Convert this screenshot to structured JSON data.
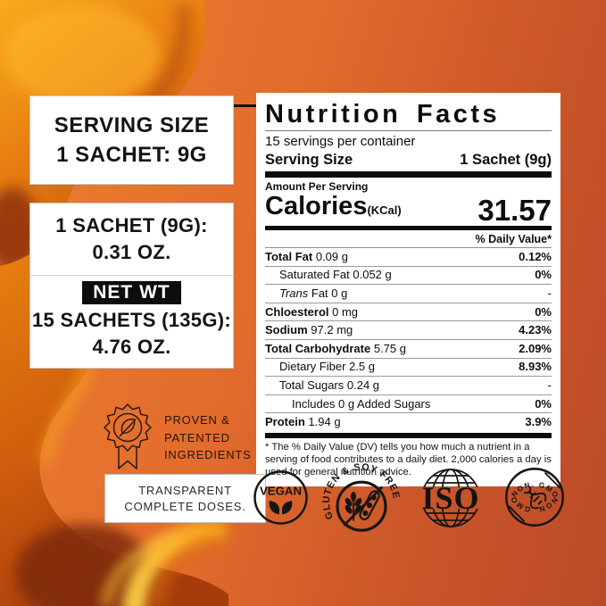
{
  "theme": {
    "bg_orange": "#ee7f32",
    "bg_red": "#bb4a28",
    "ink": "#0e0e0e",
    "honey_light": "#ffb62a",
    "honey_mid": "#e07312",
    "honey_deep": "#b5400e",
    "honey_dark": "#7e2b10"
  },
  "callouts": {
    "serving_box": {
      "line1": "SERVING SIZE",
      "line2": "1 SACHET: 9G"
    },
    "info_box": {
      "top_line1": "1 SACHET (9G):",
      "top_line2": "0.31 OZ.",
      "net_wt_chip": "NET WT",
      "bottom_line1": "15 SACHETS (135G):",
      "bottom_line2": "4.76 OZ."
    },
    "proven": {
      "lines": [
        "PROVEN &",
        "PATENTED",
        "INGREDIENTS"
      ]
    },
    "transparent_box": {
      "line1": "TRANSPARENT",
      "line2": "COMPLETE DOSES."
    }
  },
  "nutrition": {
    "title": "Nutrition Facts",
    "servings_per_container": "15 servings per container",
    "serving_size_label": "Serving Size",
    "serving_size_value": "1 Sachet (9g)",
    "amount_per_serving": "Amount Per Serving",
    "calories_label": "Calories",
    "calories_unit": "(KCal)",
    "calories_value": "31.57",
    "daily_value_header": "% Daily Value*",
    "rows": [
      {
        "indent": 0,
        "parts": [
          {
            "t": "Total Fat ",
            "b": true
          },
          {
            "t": "0.09 g"
          }
        ],
        "value": "0.12%",
        "vb": true
      },
      {
        "indent": 1,
        "parts": [
          {
            "t": "Saturated Fat 0.052 g"
          }
        ],
        "value": "0%",
        "vb": true
      },
      {
        "indent": 1,
        "parts": [
          {
            "t": "Trans",
            "i": true
          },
          {
            "t": " Fat 0 g"
          }
        ],
        "value": "-",
        "vb": false
      },
      {
        "indent": 0,
        "parts": [
          {
            "t": "Chloesterol ",
            "b": true
          },
          {
            "t": "0 mg"
          }
        ],
        "value": "0%",
        "vb": true
      },
      {
        "indent": 0,
        "parts": [
          {
            "t": "Sodium ",
            "b": true
          },
          {
            "t": "97.2 mg"
          }
        ],
        "value": "4.23%",
        "vb": true
      },
      {
        "indent": 0,
        "parts": [
          {
            "t": "Total Carbohydrate ",
            "b": true
          },
          {
            "t": "5.75 g"
          }
        ],
        "value": "2.09%",
        "vb": true
      },
      {
        "indent": 1,
        "parts": [
          {
            "t": "Dietary Fiber 2.5 g"
          }
        ],
        "value": "8.93%",
        "vb": true
      },
      {
        "indent": 1,
        "parts": [
          {
            "t": "Total Sugars 0.24 g"
          }
        ],
        "value": "-",
        "vb": false
      },
      {
        "indent": 2,
        "parts": [
          {
            "t": "Includes 0 g Added Sugars"
          }
        ],
        "value": "0%",
        "vb": true
      },
      {
        "indent": 0,
        "parts": [
          {
            "t": "Protein ",
            "b": true
          },
          {
            "t": "1.94 g"
          }
        ],
        "value": "3.9%",
        "vb": true
      }
    ],
    "footnote": "* The % Daily Value (DV) tells you how much a nutrient in a serving of food contributes to a daily diet. 2,000 calories a day is used for general nutrition advice."
  },
  "badges": {
    "vegan": "VEGAN",
    "gluten_soy": "GLUTEN & SOY FREE",
    "iso": "ISO",
    "non_gmo_top": "NON. GMO",
    "non_gmo_bottom": "NON. GMO"
  }
}
